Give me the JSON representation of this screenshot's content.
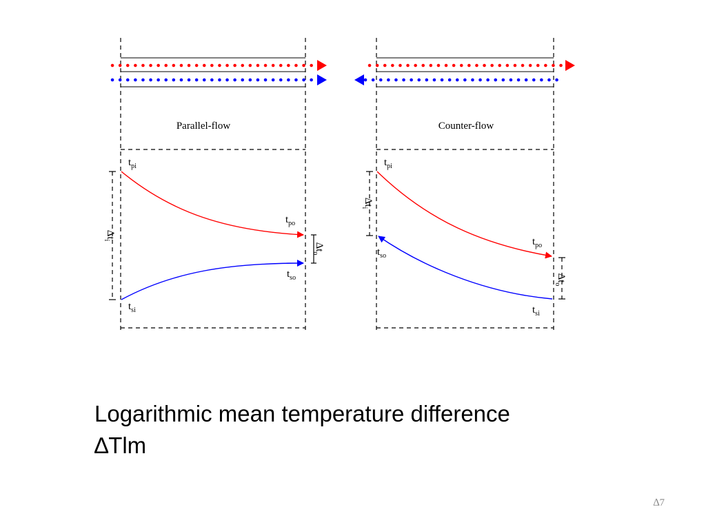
{
  "diagram": {
    "parallel": {
      "title": "Parallel-flow",
      "labels": {
        "tpi": "pi",
        "tpo": "po",
        "tso": "so",
        "tsi": "si",
        "dti": "i",
        "dto": "o"
      }
    },
    "counter": {
      "title": "Counter-flow",
      "labels": {
        "tpi": "pi",
        "tpo": "po",
        "tso": "so",
        "tsi": "si",
        "dti": "i",
        "dto": "o"
      }
    },
    "symbols": {
      "t": "t",
      "delta_t": "Δt"
    },
    "colors": {
      "hot": "#ff0000",
      "cold": "#0000ff",
      "frame": "#000000"
    }
  },
  "caption": {
    "line1": "Logarithmic mean temperature difference",
    "line2": "∆Tlm"
  },
  "slide_number": "∆7"
}
